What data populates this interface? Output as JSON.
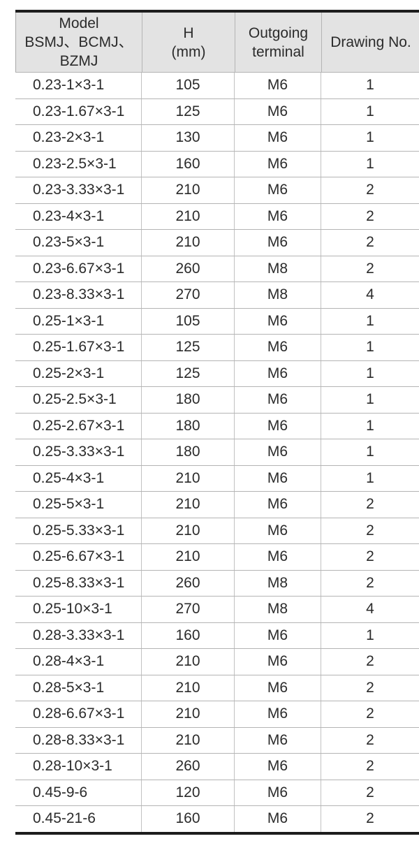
{
  "table": {
    "columns": [
      {
        "name": "model",
        "lines": [
          "Model",
          "BSMJ、BCMJ、",
          "BZMJ"
        ]
      },
      {
        "name": "height",
        "lines": [
          "H",
          "(mm)"
        ]
      },
      {
        "name": "terminal",
        "lines": [
          "Outgoing",
          "terminal"
        ]
      },
      {
        "name": "drawing",
        "lines": [
          "Drawing No."
        ]
      }
    ],
    "rows": [
      [
        "0.23-1×3-1",
        "105",
        "M6",
        "1"
      ],
      [
        "0.23-1.67×3-1",
        "125",
        "M6",
        "1"
      ],
      [
        "0.23-2×3-1",
        "130",
        "M6",
        "1"
      ],
      [
        "0.23-2.5×3-1",
        "160",
        "M6",
        "1"
      ],
      [
        "0.23-3.33×3-1",
        "210",
        "M6",
        "2"
      ],
      [
        "0.23-4×3-1",
        "210",
        "M6",
        "2"
      ],
      [
        "0.23-5×3-1",
        "210",
        "M6",
        "2"
      ],
      [
        "0.23-6.67×3-1",
        "260",
        "M8",
        "2"
      ],
      [
        "0.23-8.33×3-1",
        "270",
        "M8",
        "4"
      ],
      [
        "0.25-1×3-1",
        "105",
        "M6",
        "1"
      ],
      [
        "0.25-1.67×3-1",
        "125",
        "M6",
        "1"
      ],
      [
        "0.25-2×3-1",
        "125",
        "M6",
        "1"
      ],
      [
        "0.25-2.5×3-1",
        "180",
        "M6",
        "1"
      ],
      [
        "0.25-2.67×3-1",
        "180",
        "M6",
        "1"
      ],
      [
        "0.25-3.33×3-1",
        "180",
        "M6",
        "1"
      ],
      [
        "0.25-4×3-1",
        "210",
        "M6",
        "1"
      ],
      [
        "0.25-5×3-1",
        "210",
        "M6",
        "2"
      ],
      [
        "0.25-5.33×3-1",
        "210",
        "M6",
        "2"
      ],
      [
        "0.25-6.67×3-1",
        "210",
        "M6",
        "2"
      ],
      [
        "0.25-8.33×3-1",
        "260",
        "M8",
        "2"
      ],
      [
        "0.25-10×3-1",
        "270",
        "M8",
        "4"
      ],
      [
        "0.28-3.33×3-1",
        "160",
        "M6",
        "1"
      ],
      [
        "0.28-4×3-1",
        "210",
        "M6",
        "2"
      ],
      [
        "0.28-5×3-1",
        "210",
        "M6",
        "2"
      ],
      [
        "0.28-6.67×3-1",
        "210",
        "M6",
        "2"
      ],
      [
        "0.28-8.33×3-1",
        "210",
        "M6",
        "2"
      ],
      [
        "0.28-10×3-1",
        "260",
        "M6",
        "2"
      ],
      [
        "0.45-9-6",
        "120",
        "M6",
        "2"
      ],
      [
        "0.45-21-6",
        "160",
        "M6",
        "2"
      ]
    ]
  },
  "colors": {
    "header_bg": "#e3e3e3",
    "frame_line": "#1d1d1d",
    "grid_line": "#b4b4b4",
    "text": "#2b2b2b"
  }
}
